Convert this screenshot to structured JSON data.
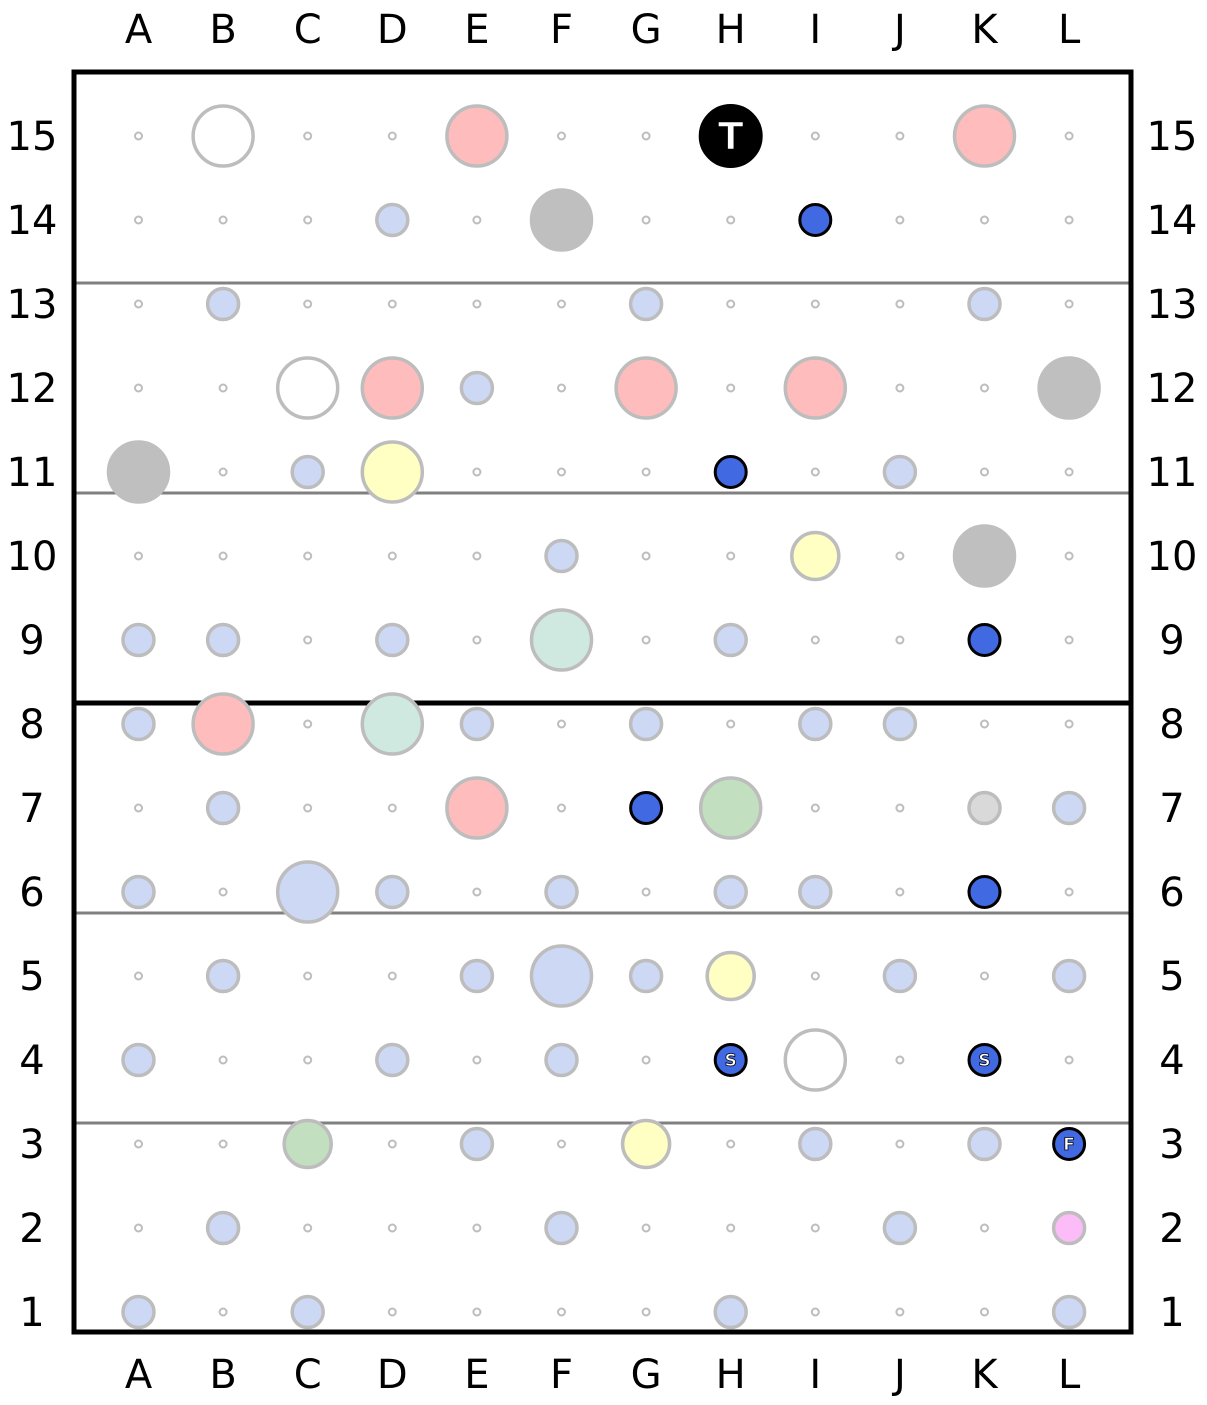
{
  "board": {
    "columns": [
      "A",
      "B",
      "C",
      "D",
      "E",
      "F",
      "G",
      "H",
      "I",
      "J",
      "K",
      "L"
    ],
    "rows": [
      "15",
      "14",
      "13",
      "12",
      "11",
      "10",
      "9",
      "8",
      "7",
      "6",
      "5",
      "4",
      "3",
      "2",
      "1"
    ]
  },
  "colors": {
    "blank_dot": "#bdbdbd",
    "blue_light": "#cdd8f5",
    "pink": "#ffbcbc",
    "white_ring": "#ffffff",
    "gray": "#bfbfbf",
    "light_gray": "#d9d9d9",
    "yellow": "#ffffc4",
    "mint": "#cfe9e0",
    "green": "#c2e0c0",
    "magenta_light": "#fbbcf7",
    "blue_piece": "#4169e1",
    "black_piece": "#000000"
  },
  "pieces": [
    {
      "col": "B",
      "row": "15",
      "type": "white_ring",
      "size": "large"
    },
    {
      "col": "E",
      "row": "15",
      "type": "pink",
      "size": "large"
    },
    {
      "col": "H",
      "row": "15",
      "type": "black_piece",
      "size": "large",
      "label": "T"
    },
    {
      "col": "K",
      "row": "15",
      "type": "pink",
      "size": "large"
    },
    {
      "col": "D",
      "row": "14",
      "type": "blue_light",
      "size": "small"
    },
    {
      "col": "F",
      "row": "14",
      "type": "gray",
      "size": "large"
    },
    {
      "col": "I",
      "row": "14",
      "type": "blue_piece",
      "size": "small"
    },
    {
      "col": "B",
      "row": "13",
      "type": "blue_light",
      "size": "small"
    },
    {
      "col": "G",
      "row": "13",
      "type": "blue_light",
      "size": "small"
    },
    {
      "col": "K",
      "row": "13",
      "type": "blue_light",
      "size": "small"
    },
    {
      "col": "C",
      "row": "12",
      "type": "white_ring",
      "size": "large"
    },
    {
      "col": "D",
      "row": "12",
      "type": "pink",
      "size": "large"
    },
    {
      "col": "E",
      "row": "12",
      "type": "blue_light",
      "size": "small"
    },
    {
      "col": "G",
      "row": "12",
      "type": "pink",
      "size": "large"
    },
    {
      "col": "I",
      "row": "12",
      "type": "pink",
      "size": "large"
    },
    {
      "col": "L",
      "row": "12",
      "type": "gray",
      "size": "large"
    },
    {
      "col": "A",
      "row": "11",
      "type": "gray",
      "size": "large"
    },
    {
      "col": "C",
      "row": "11",
      "type": "blue_light",
      "size": "small"
    },
    {
      "col": "D",
      "row": "11",
      "type": "yellow",
      "size": "large"
    },
    {
      "col": "H",
      "row": "11",
      "type": "blue_piece",
      "size": "small"
    },
    {
      "col": "J",
      "row": "11",
      "type": "blue_light",
      "size": "small"
    },
    {
      "col": "F",
      "row": "10",
      "type": "blue_light",
      "size": "small"
    },
    {
      "col": "I",
      "row": "10",
      "type": "yellow",
      "size": "medium"
    },
    {
      "col": "K",
      "row": "10",
      "type": "gray",
      "size": "large"
    },
    {
      "col": "A",
      "row": "9",
      "type": "blue_light",
      "size": "small"
    },
    {
      "col": "B",
      "row": "9",
      "type": "blue_light",
      "size": "small"
    },
    {
      "col": "D",
      "row": "9",
      "type": "blue_light",
      "size": "small"
    },
    {
      "col": "F",
      "row": "9",
      "type": "mint",
      "size": "large"
    },
    {
      "col": "H",
      "row": "9",
      "type": "blue_light",
      "size": "small"
    },
    {
      "col": "K",
      "row": "9",
      "type": "blue_piece",
      "size": "small"
    },
    {
      "col": "A",
      "row": "8",
      "type": "blue_light",
      "size": "small"
    },
    {
      "col": "B",
      "row": "8",
      "type": "pink",
      "size": "large"
    },
    {
      "col": "D",
      "row": "8",
      "type": "mint",
      "size": "large"
    },
    {
      "col": "E",
      "row": "8",
      "type": "blue_light",
      "size": "small"
    },
    {
      "col": "G",
      "row": "8",
      "type": "blue_light",
      "size": "small"
    },
    {
      "col": "I",
      "row": "8",
      "type": "blue_light",
      "size": "small"
    },
    {
      "col": "J",
      "row": "8",
      "type": "blue_light",
      "size": "small"
    },
    {
      "col": "B",
      "row": "7",
      "type": "blue_light",
      "size": "small"
    },
    {
      "col": "E",
      "row": "7",
      "type": "pink",
      "size": "large"
    },
    {
      "col": "G",
      "row": "7",
      "type": "blue_piece",
      "size": "small"
    },
    {
      "col": "H",
      "row": "7",
      "type": "green",
      "size": "large"
    },
    {
      "col": "K",
      "row": "7",
      "type": "light_gray",
      "size": "small"
    },
    {
      "col": "L",
      "row": "7",
      "type": "blue_light",
      "size": "small"
    },
    {
      "col": "A",
      "row": "6",
      "type": "blue_light",
      "size": "small"
    },
    {
      "col": "C",
      "row": "6",
      "type": "blue_light",
      "size": "large"
    },
    {
      "col": "D",
      "row": "6",
      "type": "blue_light",
      "size": "small"
    },
    {
      "col": "F",
      "row": "6",
      "type": "blue_light",
      "size": "small"
    },
    {
      "col": "H",
      "row": "6",
      "type": "blue_light",
      "size": "small"
    },
    {
      "col": "I",
      "row": "6",
      "type": "blue_light",
      "size": "small"
    },
    {
      "col": "K",
      "row": "6",
      "type": "blue_piece",
      "size": "small"
    },
    {
      "col": "B",
      "row": "5",
      "type": "blue_light",
      "size": "small"
    },
    {
      "col": "E",
      "row": "5",
      "type": "blue_light",
      "size": "small"
    },
    {
      "col": "F",
      "row": "5",
      "type": "blue_light",
      "size": "large"
    },
    {
      "col": "G",
      "row": "5",
      "type": "blue_light",
      "size": "small"
    },
    {
      "col": "H",
      "row": "5",
      "type": "yellow",
      "size": "medium"
    },
    {
      "col": "J",
      "row": "5",
      "type": "blue_light",
      "size": "small"
    },
    {
      "col": "L",
      "row": "5",
      "type": "blue_light",
      "size": "small"
    },
    {
      "col": "A",
      "row": "4",
      "type": "blue_light",
      "size": "small"
    },
    {
      "col": "D",
      "row": "4",
      "type": "blue_light",
      "size": "small"
    },
    {
      "col": "F",
      "row": "4",
      "type": "blue_light",
      "size": "small"
    },
    {
      "col": "H",
      "row": "4",
      "type": "blue_piece",
      "size": "small",
      "label": "S"
    },
    {
      "col": "I",
      "row": "4",
      "type": "white_ring",
      "size": "large"
    },
    {
      "col": "K",
      "row": "4",
      "type": "blue_piece",
      "size": "small",
      "label": "S"
    },
    {
      "col": "C",
      "row": "3",
      "type": "green",
      "size": "medium"
    },
    {
      "col": "E",
      "row": "3",
      "type": "blue_light",
      "size": "small"
    },
    {
      "col": "G",
      "row": "3",
      "type": "yellow",
      "size": "medium"
    },
    {
      "col": "I",
      "row": "3",
      "type": "blue_light",
      "size": "small"
    },
    {
      "col": "K",
      "row": "3",
      "type": "blue_light",
      "size": "small"
    },
    {
      "col": "L",
      "row": "3",
      "type": "blue_piece",
      "size": "small",
      "label": "F"
    },
    {
      "col": "B",
      "row": "2",
      "type": "blue_light",
      "size": "small"
    },
    {
      "col": "F",
      "row": "2",
      "type": "blue_light",
      "size": "small"
    },
    {
      "col": "J",
      "row": "2",
      "type": "blue_light",
      "size": "small"
    },
    {
      "col": "L",
      "row": "2",
      "type": "magenta_light",
      "size": "small"
    },
    {
      "col": "A",
      "row": "1",
      "type": "blue_light",
      "size": "small"
    },
    {
      "col": "C",
      "row": "1",
      "type": "blue_light",
      "size": "small"
    },
    {
      "col": "H",
      "row": "1",
      "type": "blue_light",
      "size": "small"
    },
    {
      "col": "L",
      "row": "1",
      "type": "blue_light",
      "size": "small"
    }
  ]
}
